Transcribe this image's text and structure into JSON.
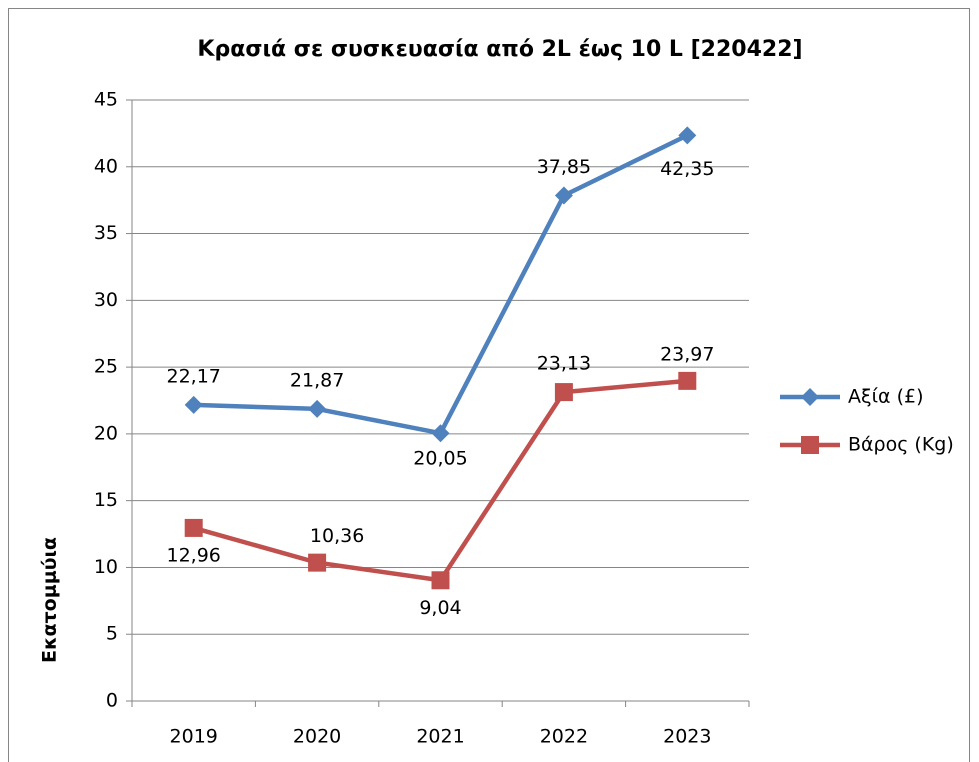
{
  "chart_data": {
    "type": "line",
    "title": "Κρασιά σε συσκευασία από 2L έως 10 L [220422]",
    "y_label": "Εκατομμύια",
    "categories": [
      "2019",
      "2020",
      "2021",
      "2022",
      "2023"
    ],
    "series": [
      {
        "name": "Αξία (£)",
        "color": "#4f81bd",
        "marker": "diamond",
        "values": [
          22.17,
          21.87,
          20.05,
          37.85,
          42.35
        ],
        "value_labels": [
          "22,17",
          "21,87",
          "20,05",
          "37,85",
          "42,35"
        ]
      },
      {
        "name": "Βάρος (Kg)",
        "color": "#c0504d",
        "marker": "square",
        "values": [
          12.96,
          10.36,
          9.04,
          23.13,
          23.97
        ],
        "value_labels": [
          "12,96",
          "10,36",
          "9,04",
          "23,13",
          "23,97"
        ]
      }
    ],
    "ylim": [
      0,
      45
    ],
    "yticks": [
      0,
      5,
      10,
      15,
      20,
      25,
      30,
      35,
      40,
      45
    ],
    "grid": true,
    "legend": "right"
  }
}
